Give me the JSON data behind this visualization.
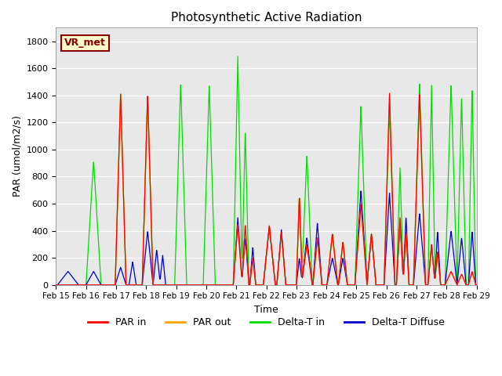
{
  "title": "Photosynthetic Active Radiation",
  "xlabel": "Time",
  "ylabel": "PAR (umol/m2/s)",
  "ylim": [
    0,
    1900
  ],
  "yticks": [
    0,
    200,
    400,
    600,
    800,
    1000,
    1200,
    1400,
    1600,
    1800
  ],
  "xtick_labels": [
    "Feb 15",
    "Feb 16",
    "Feb 17",
    "Feb 18",
    "Feb 19",
    "Feb 20",
    "Feb 21",
    "Feb 22",
    "Feb 23",
    "Feb 24",
    "Feb 25",
    "Feb 26",
    "Feb 27",
    "Feb 28",
    "Feb 29"
  ],
  "annotation_text": "VR_met",
  "annotation_bg": "#ffffcc",
  "annotation_border": "#8b0000",
  "colors": {
    "PAR_in": "#ff0000",
    "PAR_out": "#ffa500",
    "Delta_T_in": "#00dd00",
    "Delta_T_Diffuse": "#0000cc"
  },
  "legend_labels": [
    "PAR in",
    "PAR out",
    "Delta-T in",
    "Delta-T Diffuse"
  ],
  "plot_bg": "#e8e8e8"
}
